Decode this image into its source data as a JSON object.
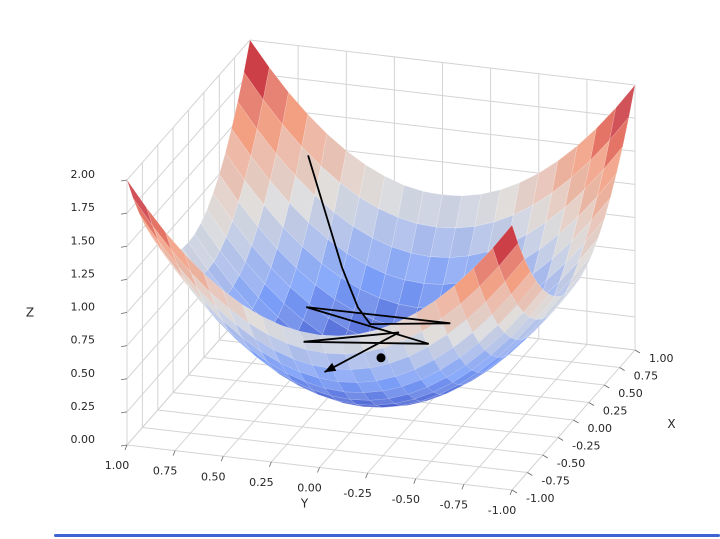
{
  "figure": {
    "background": "#ffffff",
    "kind": "matplotlib-3d-surface"
  },
  "chart_data": {
    "type": "surface",
    "title": "",
    "surface_function": "z = x^2 + y^2",
    "colormap": "coolwarm",
    "colormap_stops": [
      {
        "t": 0.0,
        "color": "#3b4cc0"
      },
      {
        "t": 0.25,
        "color": "#7c9ff9"
      },
      {
        "t": 0.5,
        "color": "#dddcdb"
      },
      {
        "t": 0.75,
        "color": "#f49a7b"
      },
      {
        "t": 1.0,
        "color": "#b40426"
      }
    ],
    "grid_divisions": 20,
    "pane_color": "#ffffff",
    "grid_color": "#d4d4d4",
    "tick_color": "#666666",
    "label_color": "#262626",
    "axes": {
      "x": {
        "label": "X",
        "min": -1,
        "max": 1,
        "tick_values": [
          -1,
          -0.75,
          -0.5,
          -0.25,
          0,
          0.25,
          0.5,
          0.75,
          1
        ],
        "tick_labels": [
          "-1.00",
          "-0.75",
          "-0.50",
          "-0.25",
          "0.00",
          "0.25",
          "0.50",
          "0.75",
          "1.00"
        ]
      },
      "y": {
        "label": "Y",
        "min": -1,
        "max": 1,
        "tick_values": [
          1,
          0.75,
          0.5,
          0.25,
          0,
          -0.25,
          -0.5,
          -0.75,
          -1
        ],
        "tick_labels": [
          "1.00",
          "0.75",
          "0.50",
          "0.25",
          "0.00",
          "-0.25",
          "-0.50",
          "-0.75",
          "-1.00"
        ]
      },
      "z": {
        "label": "Z",
        "min": 0,
        "max": 2,
        "tick_values": [
          0,
          0.25,
          0.5,
          0.75,
          1,
          1.25,
          1.5,
          1.75,
          2
        ],
        "tick_labels": [
          "0.00",
          "0.25",
          "0.50",
          "0.75",
          "1.00",
          "1.25",
          "1.50",
          "1.75",
          "2.00"
        ]
      }
    },
    "optimizer_path": {
      "color": "#000000",
      "line_width": 1.8,
      "points_xy": [
        [
          0.88,
          0.66
        ],
        [
          0.62,
          0.4
        ],
        [
          0.5,
          0.28
        ],
        [
          0.45,
          0.2
        ],
        [
          0.5,
          -0.2
        ],
        [
          0.35,
          0.5
        ],
        [
          0.4,
          -0.12
        ],
        [
          0.15,
          0.45
        ],
        [
          0.45,
          0.05
        ],
        [
          0.02,
          0.3
        ]
      ],
      "arrow_at_end": true
    },
    "minimum_marker": {
      "x": 0,
      "y": 0,
      "z": 0.3,
      "color": "#000000",
      "radius": 4.5
    }
  },
  "player": {
    "progress_color": "#3f63d2"
  }
}
